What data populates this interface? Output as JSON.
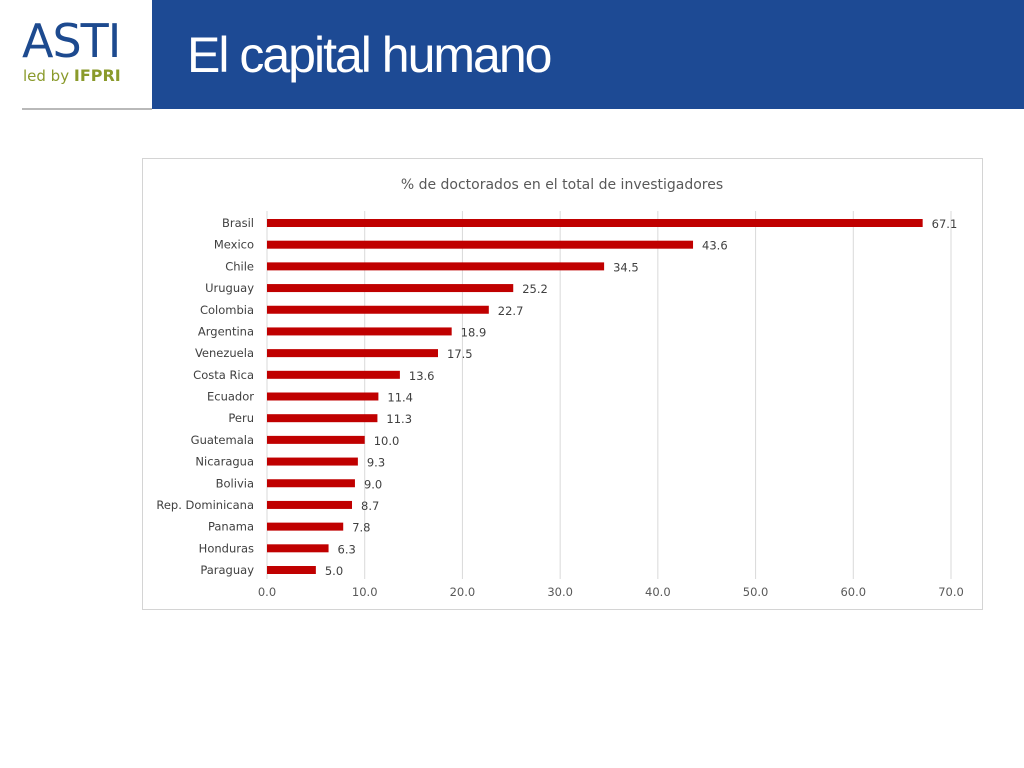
{
  "logo": {
    "main": "ASTI",
    "sub_prefix": "led by ",
    "sub_brand": "IFPRI"
  },
  "header": {
    "title": "El capital humano"
  },
  "colors": {
    "header_bg": "#1d4a94",
    "bar": "#c00000",
    "logo_blue": "#1d4a8f",
    "logo_green": "#8a9a2b"
  },
  "chart_data": {
    "type": "bar",
    "orientation": "horizontal",
    "title": "% de doctorados en el total de investigadores",
    "categories": [
      "Brasil",
      "Mexico",
      "Chile",
      "Uruguay",
      "Colombia",
      "Argentina",
      "Venezuela",
      "Costa Rica",
      "Ecuador",
      "Peru",
      "Guatemala",
      "Nicaragua",
      "Bolivia",
      "Rep. Dominicana",
      "Panama",
      "Honduras",
      "Paraguay"
    ],
    "values": [
      67.1,
      43.6,
      34.5,
      25.2,
      22.7,
      18.9,
      17.5,
      13.6,
      11.4,
      11.3,
      10.0,
      9.3,
      9.0,
      8.7,
      7.8,
      6.3,
      5.0
    ],
    "value_labels": [
      "67.1",
      "43.6",
      "34.5",
      "25.2",
      "22.7",
      "18.9",
      "17.5",
      "13.6",
      "11.4",
      "11.3",
      "10.0",
      "9.3",
      "9.0",
      "8.7",
      "7.8",
      "6.3",
      "5.0"
    ],
    "xlim": [
      0,
      70
    ],
    "xticks": [
      0,
      10,
      20,
      30,
      40,
      50,
      60,
      70
    ],
    "xtick_labels": [
      "0.0",
      "10.0",
      "20.0",
      "30.0",
      "40.0",
      "50.0",
      "60.0",
      "70.0"
    ],
    "grid": true,
    "legend": "none"
  }
}
